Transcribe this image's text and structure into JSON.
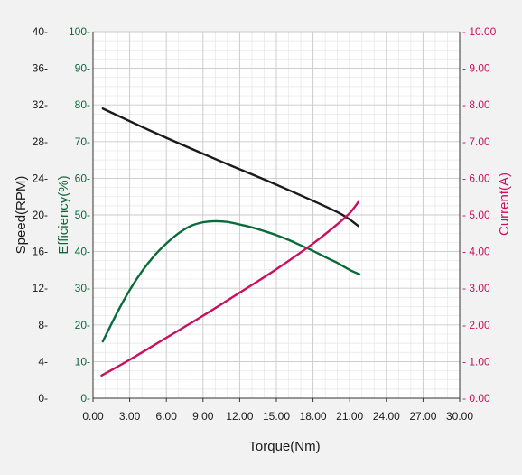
{
  "chart_data": {
    "type": "line",
    "xlabel": "Torque(Nm)",
    "xlim": [
      0,
      30
    ],
    "xticks": [
      "0.00",
      "3.00",
      "6.00",
      "9.00",
      "12.00",
      "15.00",
      "18.00",
      "21.00",
      "24.00",
      "27.00",
      "30.00"
    ],
    "y_axes": {
      "speed": {
        "label": "Speed(RPM)",
        "range": [
          0,
          40
        ],
        "ticks": [
          "0",
          "4",
          "8",
          "12",
          "16",
          "20",
          "24",
          "28",
          "32",
          "36",
          "40"
        ],
        "color": "#1a1a1a"
      },
      "efficiency": {
        "label": "Efficiency(%)",
        "range": [
          0,
          100
        ],
        "ticks": [
          "0",
          "10",
          "20",
          "30",
          "40",
          "50",
          "60",
          "70",
          "80",
          "90",
          "100"
        ],
        "color": "#0a6b3a"
      },
      "current": {
        "label": "Current(A)",
        "range": [
          0,
          10
        ],
        "ticks": [
          "0.00",
          "1.00",
          "2.00",
          "3.00",
          "4.00",
          "5.00",
          "6.00",
          "7.00",
          "8.00",
          "9.00",
          "10.00"
        ],
        "color": "#c8105e"
      }
    },
    "series": [
      {
        "axis": "speed",
        "color": "#1a1a1a",
        "x": [
          0.8,
          5,
          10,
          15,
          20,
          21.7
        ],
        "values": [
          31.6,
          29.0,
          26.1,
          23.3,
          20.3,
          18.8
        ]
      },
      {
        "axis": "efficiency",
        "color": "#0a6b3a",
        "x": [
          0.8,
          2,
          3,
          4,
          5,
          6,
          7,
          8,
          9,
          10,
          11,
          12,
          13,
          14,
          15,
          16,
          17,
          18,
          19,
          20,
          21,
          21.8
        ],
        "values": [
          15.5,
          23.5,
          29.5,
          34.6,
          38.8,
          42.2,
          45.0,
          47.0,
          48.0,
          48.3,
          48.1,
          47.4,
          46.6,
          45.6,
          44.5,
          43.2,
          41.7,
          40.2,
          38.5,
          36.9,
          35.0,
          33.8
        ]
      },
      {
        "axis": "current",
        "color": "#c8105e",
        "x": [
          0.7,
          3,
          6,
          9,
          12,
          15,
          18,
          20,
          21,
          21.7
        ],
        "values": [
          0.62,
          1.05,
          1.65,
          2.25,
          2.88,
          3.52,
          4.22,
          4.75,
          5.05,
          5.35
        ]
      }
    ],
    "grid": true
  }
}
